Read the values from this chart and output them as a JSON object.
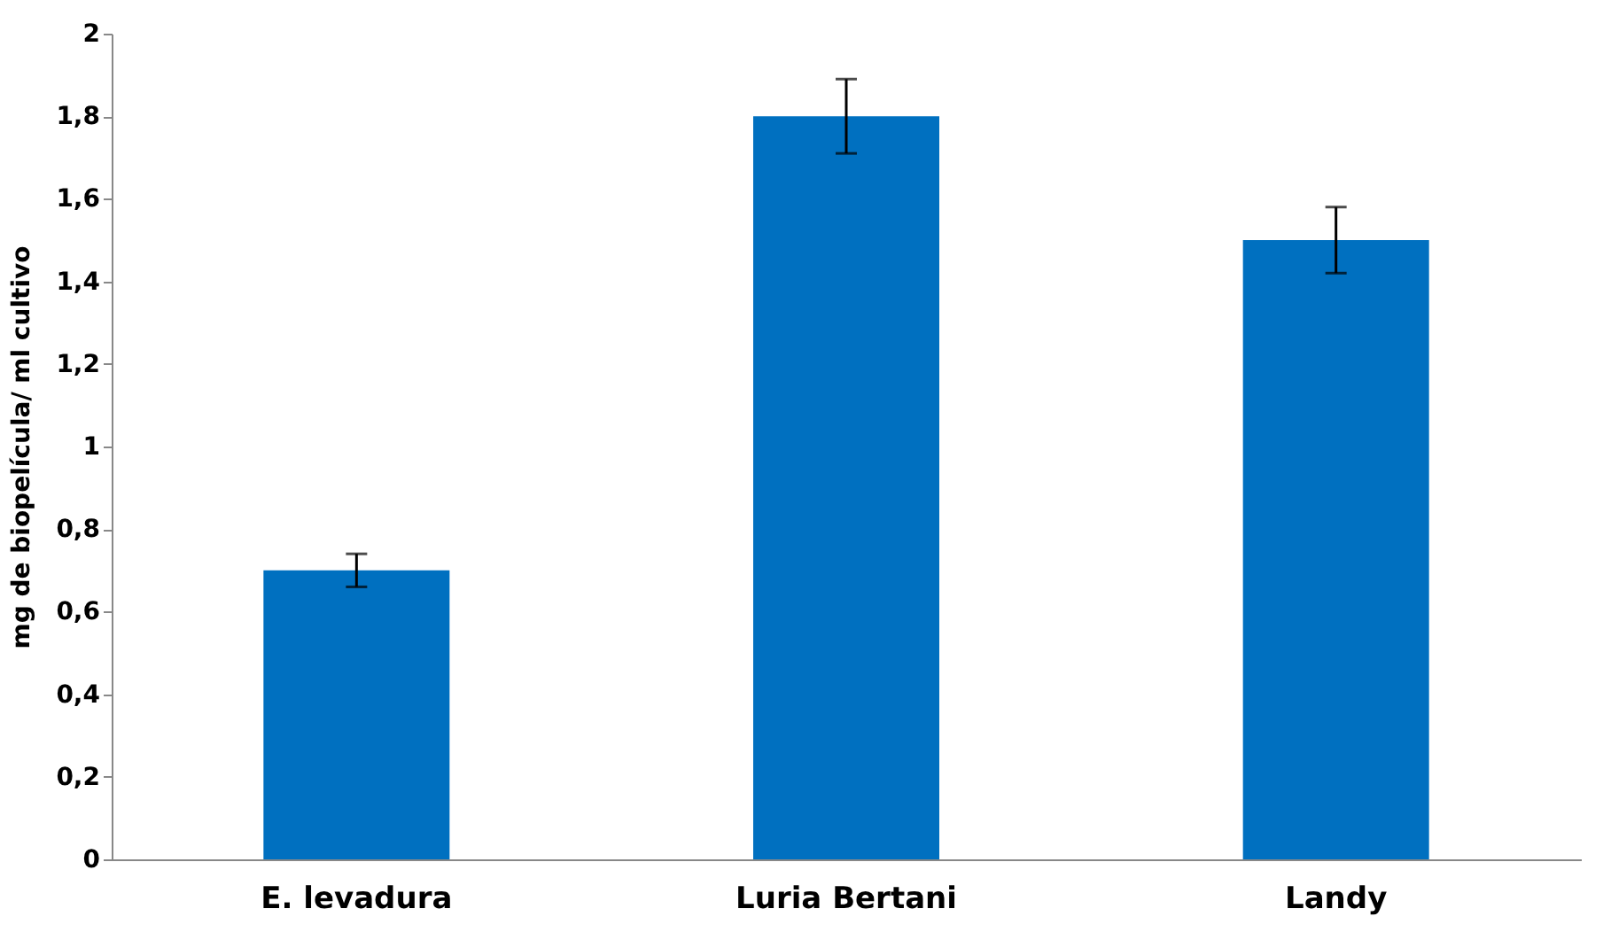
{
  "chart_data": {
    "type": "bar",
    "ylabel": "mg de biopelícula/ ml cultivo",
    "categories": [
      "E. levadura",
      "Luria Bertani",
      "Landy"
    ],
    "values": [
      0.7,
      1.8,
      1.5
    ],
    "errors": [
      0.04,
      0.09,
      0.08
    ],
    "color": "#0070c0",
    "ylim": [
      0,
      2
    ],
    "yticks": [
      0,
      {
        "value": 0.2,
        "label": "0,2"
      },
      {
        "value": 0.4,
        "label": "0,4"
      },
      {
        "value": 0.6,
        "label": "0,6"
      },
      {
        "value": 0.8,
        "label": "0,8"
      },
      1,
      {
        "value": 1.2,
        "label": "1,2"
      },
      {
        "value": 1.4,
        "label": "1,4"
      },
      {
        "value": 1.6,
        "label": "1,6"
      },
      {
        "value": 1.8,
        "label": "1,8"
      },
      2
    ],
    "grid": false
  }
}
